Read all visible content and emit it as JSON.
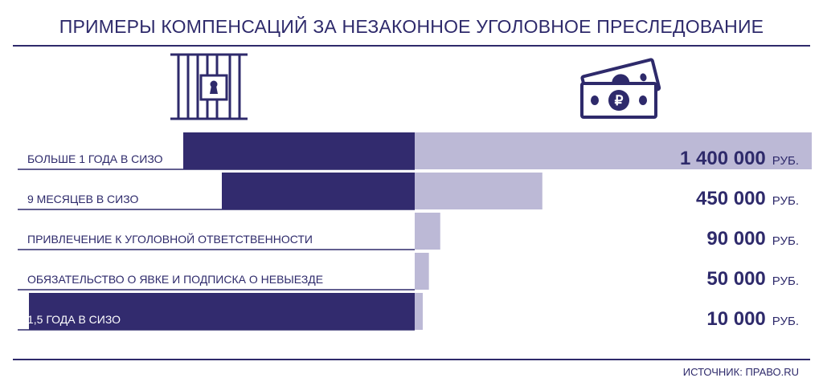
{
  "title": "ПРИМЕРЫ КОМПЕНСАЦИЙ ЗА НЕЗАКОННОЕ УГОЛОВНОЕ ПРЕСЛЕДОВАНИЕ",
  "source": "ИСТОЧНИК: ПРАВО.RU",
  "icons": {
    "left": "prison-bars-icon",
    "right": "ruble-banknotes-icon"
  },
  "colors": {
    "dark": "#322b6e",
    "light": "#bcb9d6",
    "text": "#2e2a6b",
    "line": "#2e2a6b"
  },
  "chart_data": {
    "type": "bar",
    "categories": [
      "БОЛЬШЕ 1 ГОДА В СИЗО",
      "9 МЕСЯЦЕВ В СИЗО",
      "ПРИВЛЕЧЕНИЕ К УГОЛОВНОЙ ОТВЕТСТВЕННОСТИ",
      "ОБЯЗАТЕЛЬСТВО О ЯВКЕ И ПОДПИСКА О НЕВЫЕЗДЕ",
      "1,5 ГОДА В СИЗО"
    ],
    "series": [
      {
        "values": [
          1.2,
          1.0,
          0,
          0,
          2.0
        ]
      },
      {
        "values": [
          1400000,
          450000,
          90000,
          50000,
          10000
        ]
      }
    ],
    "value_labels": [
      "1 400 000",
      "450 000",
      "90 000",
      "50 000",
      "10 000"
    ],
    "unit": "РУБ."
  }
}
